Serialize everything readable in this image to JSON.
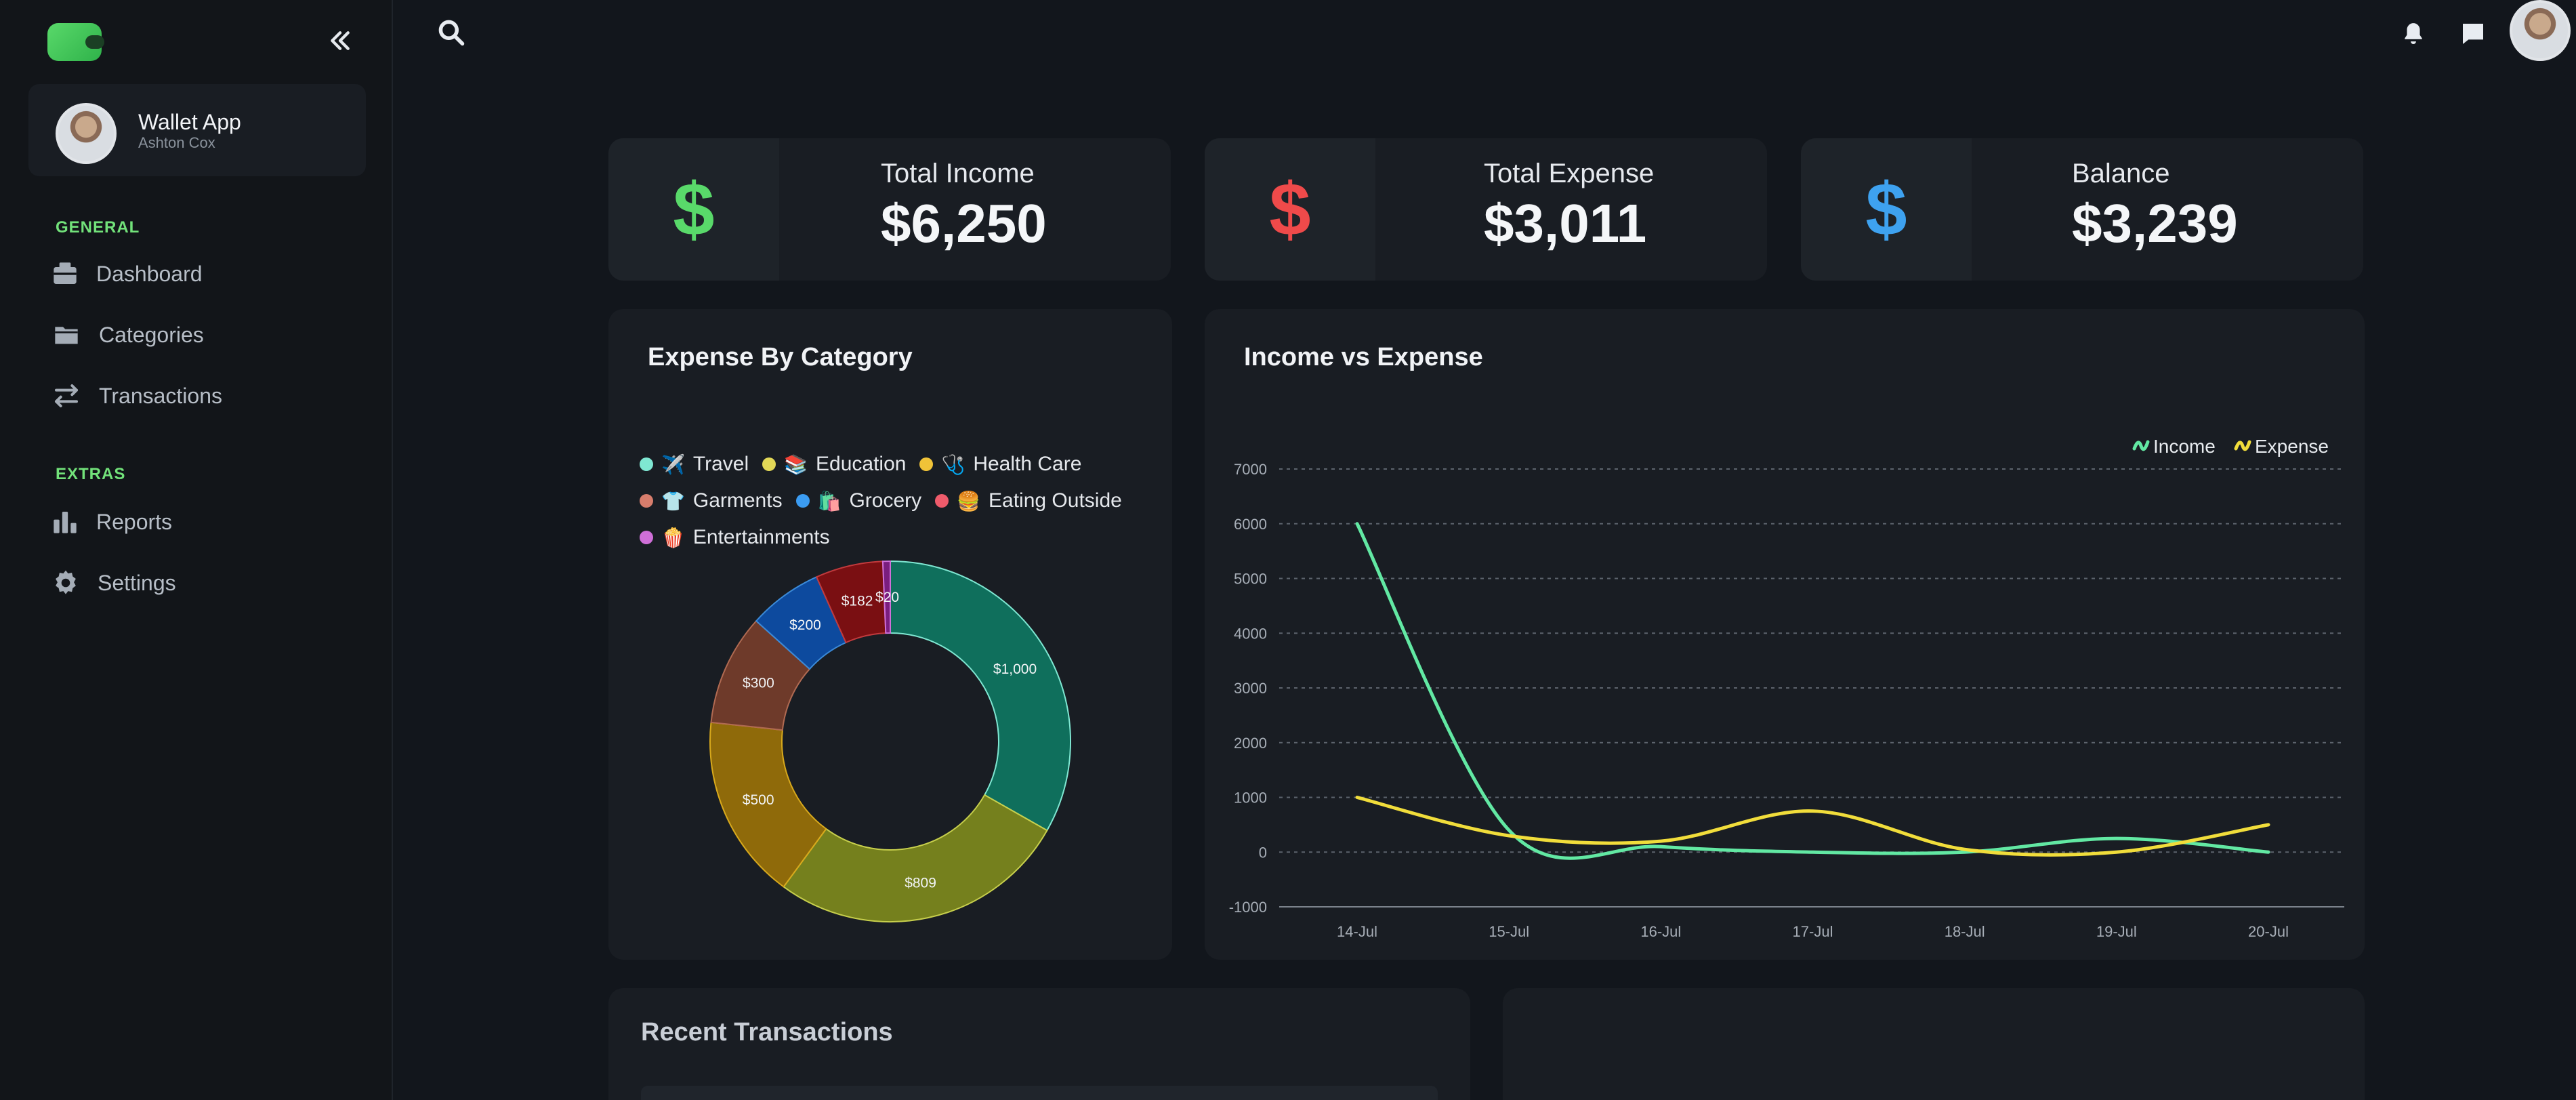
{
  "sidebar": {
    "app_name": "Wallet App",
    "user_name": "Ashton Cox",
    "sections": [
      {
        "label": "GENERAL",
        "items": [
          {
            "label": "Dashboard",
            "icon": "dashboard-icon"
          },
          {
            "label": "Categories",
            "icon": "folder-icon"
          },
          {
            "label": "Transactions",
            "icon": "transfer-icon"
          }
        ]
      },
      {
        "label": "EXTRAS",
        "items": [
          {
            "label": "Reports",
            "icon": "bar-chart-icon"
          },
          {
            "label": "Settings",
            "icon": "gear-icon"
          }
        ]
      }
    ]
  },
  "stats": [
    {
      "label": "Total Income",
      "value": "$6,250",
      "icon": "$",
      "color": "#59d96a"
    },
    {
      "label": "Total Expense",
      "value": "$3,011",
      "icon": "$",
      "color": "#ef4a4a"
    },
    {
      "label": "Balance",
      "value": "$3,239",
      "icon": "$",
      "color": "#3ea2f0"
    }
  ],
  "panels": {
    "expense_title": "Expense By Category",
    "income_title": "Income vs Expense",
    "recent_title": "Recent Transactions"
  },
  "chart_data": [
    {
      "type": "pie",
      "title": "Expense By Category",
      "legend": [
        {
          "name": "Travel",
          "emoji": "✈️",
          "dot": "#7fe7d2"
        },
        {
          "name": "Education",
          "emoji": "📚",
          "dot": "#e2d857"
        },
        {
          "name": "Health Care",
          "emoji": "🩺",
          "dot": "#f0c338"
        },
        {
          "name": "Garments",
          "emoji": "👕",
          "dot": "#d77d6c"
        },
        {
          "name": "Grocery",
          "emoji": "🛍️",
          "dot": "#3b9cf2"
        },
        {
          "name": "Eating Outside",
          "emoji": "🍔",
          "dot": "#ef5b6b"
        },
        {
          "name": "Entertainments",
          "emoji": "🍿",
          "dot": "#cf6fd8"
        }
      ],
      "slices": [
        {
          "label": "$1,000",
          "value": 1000,
          "color": "#0f6f5c",
          "stroke": "#7fe7d2"
        },
        {
          "label": "$809",
          "value": 809,
          "color": "#75801d",
          "stroke": "#c7cf4c"
        },
        {
          "label": "$500",
          "value": 500,
          "color": "#8f6a0a",
          "stroke": "#d8a91c"
        },
        {
          "label": "$300",
          "value": 300,
          "color": "#6e3a2a",
          "stroke": "#b06a52"
        },
        {
          "label": "$200",
          "value": 200,
          "color": "#0d4a9e",
          "stroke": "#3b8ad8"
        },
        {
          "label": "$182",
          "value": 182,
          "color": "#7a0f12",
          "stroke": "#c23a3d"
        },
        {
          "label": "$20",
          "value": 20,
          "color": "#7a1e7e",
          "stroke": "#cf6fd8"
        }
      ]
    },
    {
      "type": "line",
      "title": "Income vs Expense",
      "categories": [
        "14-Jul",
        "15-Jul",
        "16-Jul",
        "17-Jul",
        "18-Jul",
        "19-Jul",
        "20-Jul"
      ],
      "ylim": [
        -1000,
        7000
      ],
      "yticks": [
        7000,
        6000,
        5000,
        4000,
        3000,
        2000,
        1000,
        0,
        -1000
      ],
      "grid": true,
      "legend_position": "top-right",
      "series": [
        {
          "name": "Income",
          "color": "#62e8a3",
          "values": [
            6000,
            400,
            100,
            0,
            0,
            250,
            0
          ]
        },
        {
          "name": "Expense",
          "color": "#f1dd3b",
          "values": [
            1000,
            300,
            200,
            750,
            50,
            0,
            500
          ]
        }
      ]
    }
  ]
}
